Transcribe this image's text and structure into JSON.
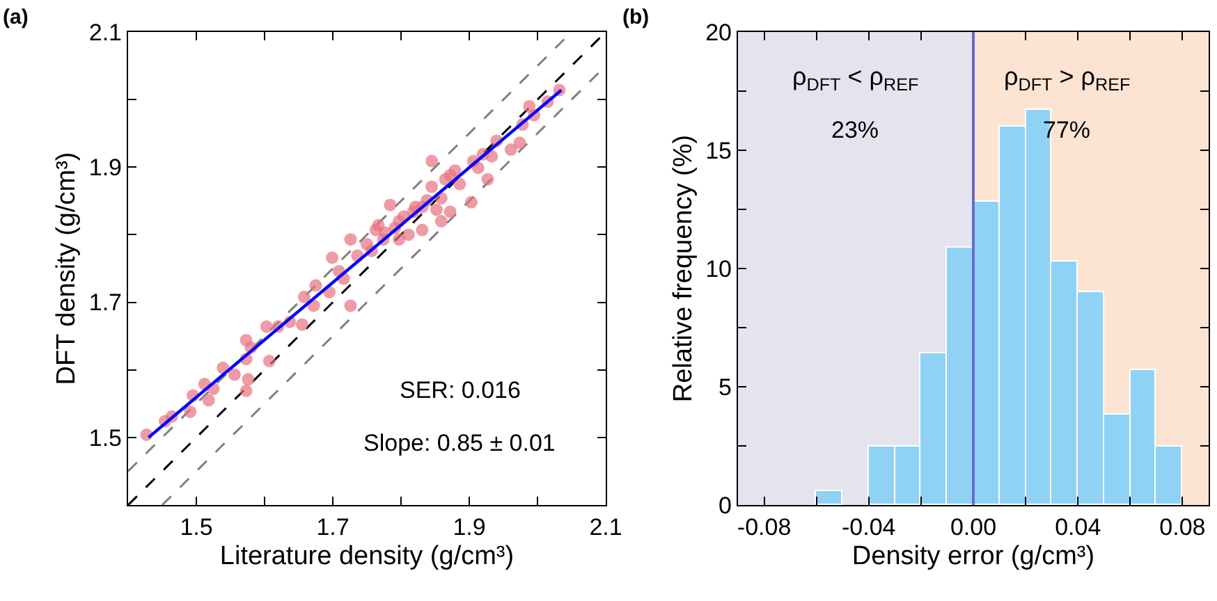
{
  "chart_data": [
    {
      "type": "scatter",
      "xlabel": "Literature density (g/cm³)",
      "ylabel": "DFT density (g/cm³)",
      "xlim": [
        1.4,
        2.1
      ],
      "ylim": [
        1.4,
        2.1
      ],
      "xticks": [
        1.5,
        {
          "value": 1.6,
          "label": null
        },
        1.7,
        {
          "value": 1.8,
          "label": null
        },
        1.9,
        {
          "value": 2.0,
          "label": null
        },
        2.1
      ],
      "yticks": [
        1.5,
        {
          "value": 1.6,
          "label": null
        },
        1.7,
        {
          "value": 1.8,
          "label": null
        },
        1.9,
        {
          "value": 2.0,
          "label": null
        },
        2.1
      ],
      "grid": false,
      "annotations": [
        "(a)",
        "SER: 0.016",
        "Slope: 0.85 ± 0.01"
      ],
      "series": [
        {
          "type": "line",
          "color": "#808080",
          "line_style": "dashed",
          "marker": "none",
          "x": [
            1.4,
            2.05
          ],
          "values": [
            1.45,
            2.1
          ]
        },
        {
          "type": "line",
          "color": "#808080",
          "line_style": "dashed",
          "marker": "none",
          "x": [
            1.45,
            2.1
          ],
          "values": [
            1.4,
            2.05
          ]
        },
        {
          "type": "line",
          "color": "#000000",
          "line_style": "dashed",
          "marker": "none",
          "x": [
            1.4,
            2.1
          ],
          "values": [
            1.4,
            2.1
          ]
        },
        {
          "type": "scatter",
          "color": "#e8707f",
          "marker": "circle",
          "x": [
            1.427,
            1.454,
            1.464,
            1.491,
            1.495,
            1.512,
            1.518,
            1.525,
            1.539,
            1.556,
            1.573,
            1.576,
            1.573,
            1.573,
            1.58,
            1.607,
            1.603,
            1.62,
            1.637,
            1.655,
            1.658,
            1.672,
            1.675,
            1.695,
            1.699,
            1.709,
            1.716,
            1.726,
            1.726,
            1.736,
            1.75,
            1.757,
            1.767,
            1.774,
            1.777,
            1.784,
            1.791,
            1.797,
            1.804,
            1.811,
            1.818,
            1.821,
            1.831,
            1.838,
            1.845,
            1.845,
            1.852,
            1.859,
            1.865,
            1.872,
            1.879,
            1.886,
            1.872,
            1.903,
            1.906,
            1.913,
            1.92,
            1.933,
            1.94,
            1.961,
            1.974,
            1.978,
            1.988,
            1.995,
            2.015,
            2.032,
            1.927,
            1.831,
            1.797,
            1.763,
            1.859
          ],
          "values": [
            1.504,
            1.524,
            1.531,
            1.538,
            1.562,
            1.579,
            1.555,
            1.572,
            1.603,
            1.593,
            1.616,
            1.586,
            1.569,
            1.644,
            1.633,
            1.613,
            1.664,
            1.664,
            1.671,
            1.667,
            1.708,
            1.695,
            1.725,
            1.715,
            1.766,
            1.746,
            1.735,
            1.695,
            1.793,
            1.769,
            1.786,
            1.776,
            1.814,
            1.793,
            1.803,
            1.844,
            1.81,
            1.82,
            1.827,
            1.8,
            1.834,
            1.841,
            1.841,
            1.851,
            1.871,
            1.909,
            1.837,
            1.854,
            1.882,
            1.888,
            1.895,
            1.875,
            1.834,
            1.848,
            1.909,
            1.899,
            1.919,
            1.916,
            1.939,
            1.926,
            1.936,
            1.963,
            1.99,
            1.977,
            1.997,
            2.014,
            1.882,
            1.807,
            1.793,
            1.807,
            1.82
          ]
        },
        {
          "type": "line",
          "color": "#0000ff",
          "line_style": "solid",
          "marker": "none",
          "x": [
            1.43,
            2.035
          ],
          "values": [
            1.5,
            2.014
          ]
        }
      ]
    },
    {
      "type": "histogram",
      "xlabel": "Density error (g/cm³)",
      "ylabel": "Relative frequency (%)",
      "xlim": [
        -0.09,
        0.09
      ],
      "ylim": [
        0,
        20
      ],
      "xticks": [
        {
          "value": -0.08,
          "label": "-0.08"
        },
        {
          "value": -0.06,
          "label": null
        },
        {
          "value": -0.04,
          "label": "-0.04"
        },
        {
          "value": -0.02,
          "label": null
        },
        {
          "value": 0,
          "label": "0.00"
        },
        {
          "value": 0.02,
          "label": null
        },
        {
          "value": 0.04,
          "label": "0.04"
        },
        {
          "value": 0.06,
          "label": null
        },
        {
          "value": 0.08,
          "label": "0.08"
        }
      ],
      "yticks": [
        0,
        {
          "value": 2.5,
          "label": null
        },
        5,
        {
          "value": 7.5,
          "label": null
        },
        10,
        {
          "value": 12.5,
          "label": null
        },
        15,
        {
          "value": 17.5,
          "label": null
        },
        20
      ],
      "grid": false,
      "color": "#90d2f5",
      "bins": [
        -0.06,
        -0.05,
        -0.04,
        -0.03,
        -0.02,
        -0.01,
        0,
        0.01,
        0.02,
        0.03,
        0.04,
        0.05,
        0.06,
        0.07,
        0.08
      ],
      "values": [
        0.6,
        0,
        2.5,
        2.5,
        6.4,
        10.9,
        12.8,
        16.0,
        16.7,
        10.3,
        9.0,
        3.8,
        5.7,
        2.5
      ],
      "bands": [
        {
          "axis": "x",
          "from": -0.09,
          "to": 0,
          "label": null,
          "color": "#e4e4ee"
        },
        {
          "axis": "x",
          "from": 0,
          "to": 0.09,
          "label": null,
          "color": "#fde4d2"
        }
      ],
      "ref_lines": [
        {
          "axis": "x",
          "value": 0,
          "label": null,
          "color": "#6a6acc"
        }
      ],
      "annotations": [
        "(b)",
        "ρ$_{DFT}$ < ρ$_{REF}$",
        "23%",
        "ρ$_{DFT}$ > ρ$_{REF}$",
        "77%"
      ]
    }
  ]
}
